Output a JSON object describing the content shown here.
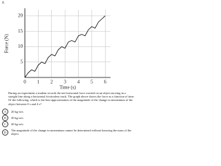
{
  "question_number": "4.",
  "chart_data": {
    "type": "line",
    "x_label": "Time (s)",
    "y_label": "Force (N)",
    "x": [
      0,
      0.25,
      0.5,
      0.75,
      1,
      1.25,
      1.5,
      1.75,
      2,
      2.25,
      2.5,
      2.75,
      3,
      3.25,
      3.5,
      3.75,
      4,
      4.25,
      4.5,
      4.75,
      5,
      5.25,
      5.5,
      5.75,
      6
    ],
    "values": [
      0,
      1.5,
      2.5,
      2,
      4,
      5,
      4.5,
      6.5,
      7.5,
      7,
      9,
      10,
      9.5,
      11.5,
      12,
      11.5,
      13.5,
      14,
      13.5,
      15.5,
      16.5,
      16,
      18,
      19,
      20
    ],
    "color": "#000000",
    "xlim": [
      0,
      6.4
    ],
    "ylim": [
      0,
      22
    ],
    "xticks": [
      0,
      1,
      2,
      3,
      4,
      5,
      6
    ],
    "yticks": [
      5,
      10,
      15,
      20
    ],
    "grid": true
  },
  "question": "During an experiment a student records the net horizontal force exerted on an object moving in a straight line along a horizontal frictionless track. The graph above shows the force as a function of time. Of the following, which is the best approximation of the magnitude of the change in momentum of the object between 0 s and 4 s?",
  "options": [
    {
      "letter": "A",
      "text": "20 kg·m/s"
    },
    {
      "letter": "B",
      "text": "30 kg·m/s"
    },
    {
      "letter": "C",
      "text": "40 kg·m/s"
    },
    {
      "letter": "D",
      "text": "The magnitude of the change in momentum cannot be determined without knowing the mass of the object."
    }
  ]
}
